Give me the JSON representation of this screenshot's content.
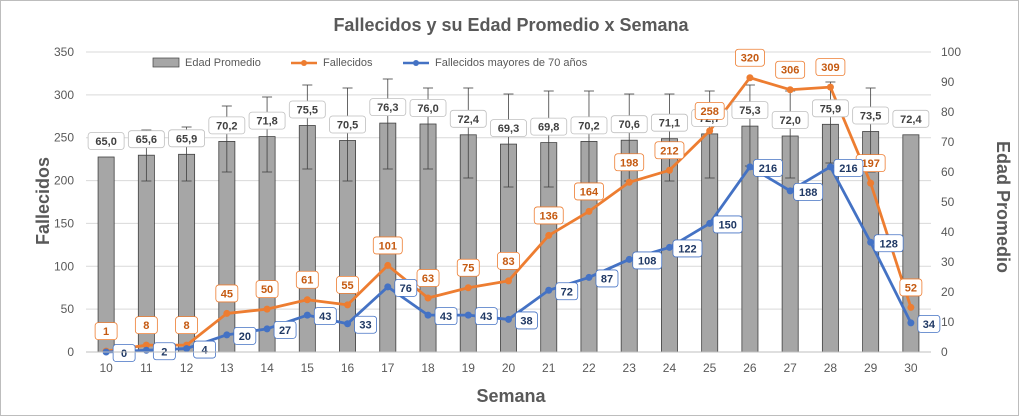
{
  "chart_data": {
    "type": "bar",
    "title": "Fallecidos y su Edad Promedio  x Semana",
    "xlabel": "Semana",
    "ylabel": "Fallecidos",
    "y2label": "Edad Promedio",
    "ylim": [
      0,
      350
    ],
    "y2lim": [
      0,
      100
    ],
    "yticks": [
      "0",
      "50",
      "100",
      "150",
      "200",
      "250",
      "300",
      "350"
    ],
    "y2ticks": [
      "0",
      "10",
      "20",
      "30",
      "40",
      "50",
      "60",
      "70",
      "80",
      "90",
      "100"
    ],
    "grid": true,
    "legend_position": "top",
    "categories": [
      "10",
      "11",
      "12",
      "13",
      "14",
      "15",
      "16",
      "17",
      "18",
      "19",
      "20",
      "21",
      "22",
      "23",
      "24",
      "25",
      "26",
      "27",
      "28",
      "29",
      "30"
    ],
    "series": [
      {
        "name": "Edad Promedio",
        "kind": "bar",
        "axis": "right",
        "color": "#a6a6a6",
        "values": [
          65.0,
          65.6,
          65.9,
          70.2,
          71.8,
          75.5,
          70.5,
          76.3,
          76.0,
          72.4,
          69.3,
          69.8,
          70.2,
          70.6,
          71.1,
          72.7,
          75.3,
          72.0,
          75.9,
          73.5,
          72.4
        ],
        "labels": [
          "65,0",
          "65,6",
          "65,9",
          "70,2",
          "71,8",
          "75,5",
          "70,5",
          "76,3",
          "76,0",
          "72,4",
          "69,3",
          "69,8",
          "70,2",
          "70,6",
          "71,1",
          "72,7",
          "75,3",
          "72,0",
          "75,9",
          "73,5",
          "72,4"
        ],
        "error_low": [
          null,
          57,
          57,
          60,
          60,
          61,
          57,
          61,
          61,
          58,
          55,
          55,
          55,
          57,
          57,
          58,
          62,
          58,
          63,
          60,
          null
        ],
        "error_high": [
          null,
          74,
          75,
          82,
          85,
          89,
          88,
          91,
          88,
          88,
          86,
          87,
          87,
          86,
          86,
          87,
          89,
          87,
          90,
          88,
          null
        ]
      },
      {
        "name": "Fallecidos",
        "kind": "line",
        "axis": "left",
        "color": "#ed7d31",
        "values": [
          1,
          8,
          8,
          45,
          50,
          61,
          55,
          101,
          63,
          75,
          83,
          136,
          164,
          198,
          212,
          258,
          320,
          306,
          309,
          197,
          52
        ]
      },
      {
        "name": "Fallecidos mayores de 70 años",
        "kind": "line",
        "axis": "left",
        "color": "#4472c4",
        "values": [
          0,
          2,
          4,
          20,
          27,
          43,
          33,
          76,
          43,
          43,
          38,
          72,
          87,
          108,
          122,
          150,
          216,
          188,
          216,
          128,
          34
        ]
      }
    ]
  }
}
